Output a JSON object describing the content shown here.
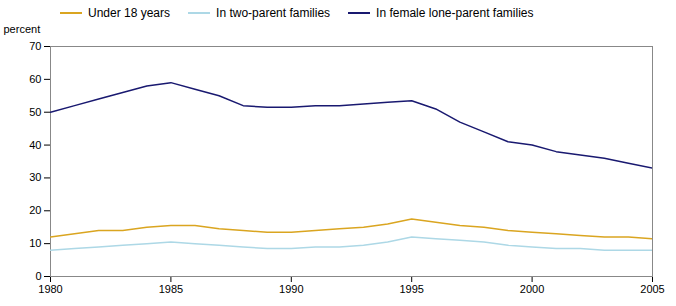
{
  "chart_data": {
    "type": "line",
    "x": [
      1980,
      1981,
      1982,
      1983,
      1984,
      1985,
      1986,
      1987,
      1988,
      1989,
      1990,
      1991,
      1992,
      1993,
      1994,
      1995,
      1996,
      1997,
      1998,
      1999,
      2000,
      2001,
      2002,
      2003,
      2004,
      2005
    ],
    "series": [
      {
        "name": "Under 18 years",
        "color": "#DAA520",
        "values": [
          12,
          13,
          14,
          14,
          15,
          15.5,
          15.5,
          14.5,
          14,
          13.5,
          13.5,
          14,
          14.5,
          15,
          16,
          17.5,
          16.5,
          15.5,
          15,
          14,
          13.5,
          13,
          12.5,
          12,
          12,
          11.5
        ]
      },
      {
        "name": "In two-parent families",
        "color": "#ADD8E6",
        "values": [
          8,
          8.5,
          9,
          9.5,
          10,
          10.5,
          10,
          9.5,
          9,
          8.5,
          8.5,
          9,
          9,
          9.5,
          10.5,
          12,
          11.5,
          11,
          10.5,
          9.5,
          9,
          8.5,
          8.5,
          8,
          8,
          8
        ]
      },
      {
        "name": "In female lone-parent families",
        "color": "#191970",
        "values": [
          50,
          52,
          54,
          56,
          58,
          59,
          57,
          55,
          52,
          51.5,
          51.5,
          52,
          52,
          52.5,
          53,
          53.5,
          51,
          47,
          44,
          41,
          40,
          38,
          37,
          36,
          34.5,
          33
        ]
      }
    ],
    "ylabel": "percent",
    "xlim": [
      1980,
      2005
    ],
    "ylim": [
      0,
      70
    ],
    "xticks": [
      1980,
      1985,
      1990,
      1995,
      2000,
      2005
    ],
    "yticks": [
      0,
      10,
      20,
      30,
      40,
      50,
      60,
      70
    ],
    "grid": false,
    "legend": "top"
  }
}
